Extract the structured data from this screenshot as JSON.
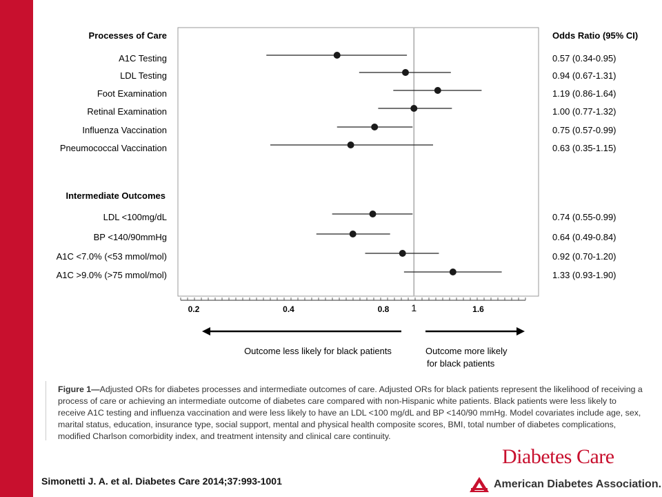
{
  "chart_data": {
    "type": "forest",
    "x_scale": "log",
    "xlim": [
      0.2,
      2.4
    ],
    "x_ticks": [
      "0.2",
      "0.4",
      "0.8",
      "1",
      "1.6"
    ],
    "reference_line": 1,
    "left_header": "Processes of Care",
    "right_header": "Odds Ratio (95% CI)",
    "sections": [
      {
        "title": "Processes of Care",
        "rows": [
          {
            "label": "A1C Testing",
            "or": 0.57,
            "lo": 0.34,
            "hi": 0.95,
            "text": "0.57 (0.34-0.95)"
          },
          {
            "label": "LDL Testing",
            "or": 0.94,
            "lo": 0.67,
            "hi": 1.31,
            "text": "0.94 (0.67-1.31)"
          },
          {
            "label": "Foot Examination",
            "or": 1.19,
            "lo": 0.86,
            "hi": 1.64,
            "text": "1.19 (0.86-1.64)"
          },
          {
            "label": "Retinal Examination",
            "or": 1.0,
            "lo": 0.77,
            "hi": 1.32,
            "text": "1.00 (0.77-1.32)"
          },
          {
            "label": "Influenza Vaccination",
            "or": 0.75,
            "lo": 0.57,
            "hi": 0.99,
            "text": "0.75 (0.57-0.99)"
          },
          {
            "label": "Pneumococcal Vaccination",
            "or": 0.63,
            "lo": 0.35,
            "hi": 1.15,
            "text": "0.63 (0.35-1.15)"
          }
        ]
      },
      {
        "title": "Intermediate Outcomes",
        "rows": [
          {
            "label": "LDL <100mg/dL",
            "or": 0.74,
            "lo": 0.55,
            "hi": 0.99,
            "text": "0.74 (0.55-0.99)"
          },
          {
            "label": "BP <140/90mmHg",
            "or": 0.64,
            "lo": 0.49,
            "hi": 0.84,
            "text": "0.64 (0.49-0.84)"
          },
          {
            "label": "A1C <7.0% (<53 mmol/mol)",
            "or": 0.92,
            "lo": 0.7,
            "hi": 1.2,
            "text": "0.92 (0.70-1.20)"
          },
          {
            "label": "A1C >9.0% (>75 mmol/mol)",
            "or": 1.33,
            "lo": 0.93,
            "hi": 1.9,
            "text": "1.33 (0.93-1.90)"
          }
        ]
      }
    ],
    "arrow_left_label": "Outcome less likely for black patients",
    "arrow_right_label_1": "Outcome more likely",
    "arrow_right_label_2": "for black patients"
  },
  "caption": {
    "lead": "Figure 1—",
    "body": "Adjusted ORs for diabetes processes and intermediate outcomes of care. Adjusted ORs for black patients represent the likelihood of receiving a process of care or achieving an intermediate outcome of diabetes care compared with non-Hispanic white patients. Black patients were less likely to receive A1C testing and influenza vaccination and were less likely to have an LDL <100 mg/dL and BP <140/90 mmHg. Model covariates include age, sex, marital status, education, insurance type, social support, mental and physical health composite scores, BMI, total number of diabetes complications, modified Charlson comorbidity index, and treatment intensity and clinical care continuity."
  },
  "citation": "Simonetti J. A. et al. Diabetes Care 2014;37:993-1001",
  "brand": {
    "journal": "Diabetes Care",
    "association": "American Diabetes Association."
  },
  "colors": {
    "band": "#c8102e",
    "brand": "#c8102e",
    "marker": "#1a1a1a",
    "reference": "#bbbbbb"
  }
}
